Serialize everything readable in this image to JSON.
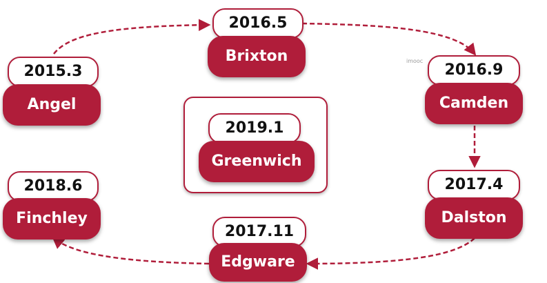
{
  "nodes": [
    {
      "id": "angel",
      "date": "2015.3",
      "name": "Angel"
    },
    {
      "id": "brixton",
      "date": "2016.5",
      "name": "Brixton"
    },
    {
      "id": "camden",
      "date": "2016.9",
      "name": "Camden"
    },
    {
      "id": "dalston",
      "date": "2017.4",
      "name": "Dalston"
    },
    {
      "id": "edgware",
      "date": "2017.11",
      "name": "Edgware"
    },
    {
      "id": "finchley",
      "date": "2018.6",
      "name": "Finchley"
    },
    {
      "id": "greenwich",
      "date": "2019.1",
      "name": "Greenwich"
    }
  ],
  "watermark": "imooc",
  "colors": {
    "accent": "#b01d3a",
    "arrow": "#b01d3a"
  }
}
